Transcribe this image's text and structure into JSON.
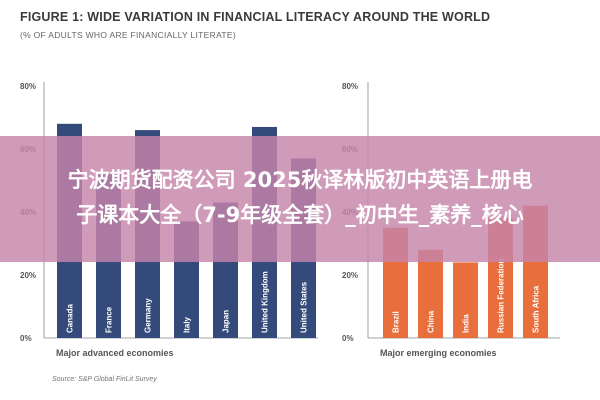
{
  "header": {
    "title": "FIGURE 1: WIDE VARIATION IN FINANCIAL LITERACY AROUND THE WORLD",
    "subtitle": "(% OF ADULTS WHO ARE FINANCIALLY LITERATE)"
  },
  "source": "Source: S&P Global FinLit Survey",
  "overlay": {
    "line1": "宁波期货配资公司 2025秋译林版初中英语上册电",
    "line2": "子课本大全（7-9年级全套）_初中生_素养_核心"
  },
  "colors": {
    "advanced": "#344a7a",
    "emerging": "#e86f3c",
    "overlay": "#c684aa"
  },
  "chart_data": [
    {
      "type": "bar",
      "group_label": "Major advanced economies",
      "categories": [
        "Canada",
        "France",
        "Germany",
        "Italy",
        "Japan",
        "United Kingdom",
        "United States"
      ],
      "values": [
        68,
        52,
        66,
        37,
        43,
        67,
        57
      ],
      "ylim": [
        0,
        80
      ],
      "yticks": [
        "0%",
        "20%",
        "40%",
        "60%",
        "80%"
      ],
      "grid": false,
      "color": "#344a7a"
    },
    {
      "type": "bar",
      "group_label": "Major emerging economies",
      "categories": [
        "Brazil",
        "China",
        "India",
        "Russian Federation",
        "South Africa"
      ],
      "values": [
        35,
        28,
        24,
        38,
        42
      ],
      "ylim": [
        0,
        80
      ],
      "yticks": [
        "0%",
        "20%",
        "40%",
        "60%",
        "80%"
      ],
      "grid": false,
      "color": "#e86f3c"
    }
  ]
}
